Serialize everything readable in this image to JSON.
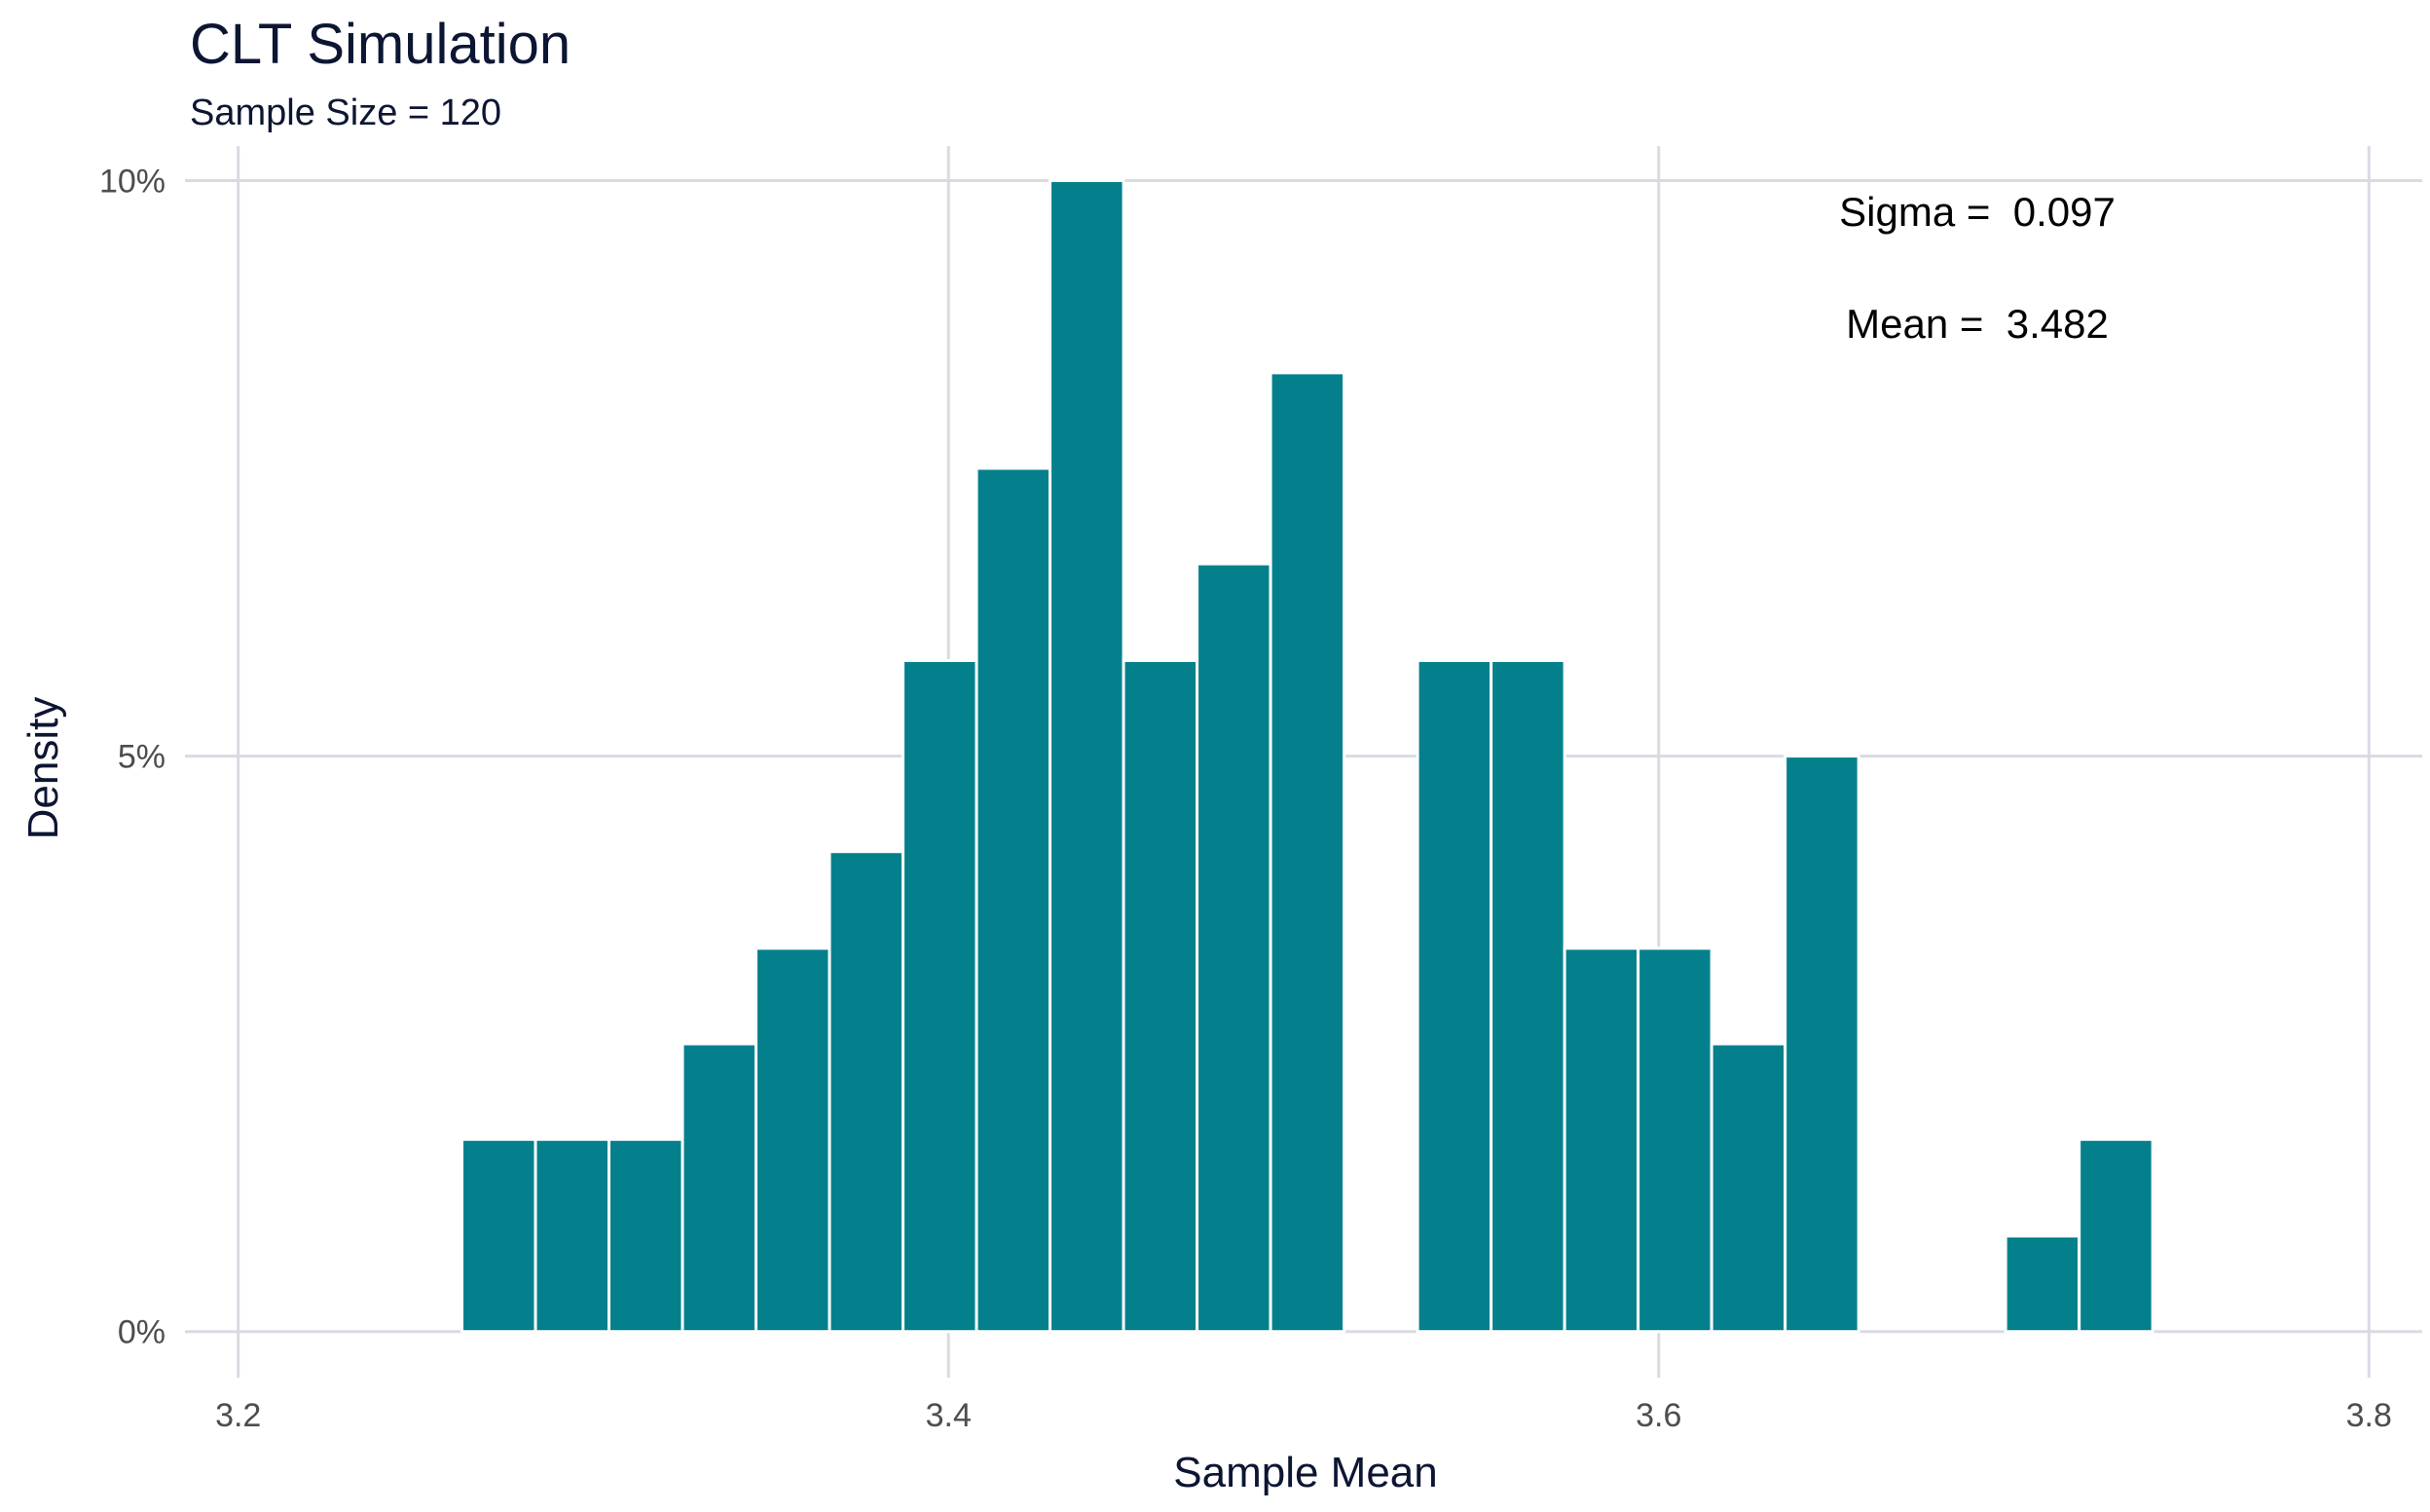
{
  "chart_data": {
    "type": "bar",
    "title": "CLT Simulation",
    "subtitle": "Sample Size = 120",
    "xlabel": "Sample Mean",
    "ylabel": "Density",
    "xlim": [
      3.185,
      3.815
    ],
    "ylim": [
      -0.004,
      0.103
    ],
    "x_ticks": [
      {
        "value": 3.2,
        "label": "3.2"
      },
      {
        "value": 3.4,
        "label": "3.4"
      },
      {
        "value": 3.6,
        "label": "3.6"
      },
      {
        "value": 3.8,
        "label": "3.8"
      }
    ],
    "y_ticks": [
      {
        "value": 0.0,
        "label": "0%"
      },
      {
        "value": 0.05,
        "label": "5%"
      },
      {
        "value": 0.1,
        "label": "10%"
      }
    ],
    "bin_width": 0.0207,
    "bins": [
      {
        "x0": 3.263,
        "x1": 3.2837,
        "density": 0.0167
      },
      {
        "x0": 3.2837,
        "x1": 3.3044,
        "density": 0.0167
      },
      {
        "x0": 3.3044,
        "x1": 3.3251,
        "density": 0.0167
      },
      {
        "x0": 3.3251,
        "x1": 3.3458,
        "density": 0.025
      },
      {
        "x0": 3.3458,
        "x1": 3.3665,
        "density": 0.0333
      },
      {
        "x0": 3.3665,
        "x1": 3.3872,
        "density": 0.0417
      },
      {
        "x0": 3.3872,
        "x1": 3.4079,
        "density": 0.0583
      },
      {
        "x0": 3.4079,
        "x1": 3.4286,
        "density": 0.075
      },
      {
        "x0": 3.4286,
        "x1": 3.4493,
        "density": 0.1
      },
      {
        "x0": 3.4493,
        "x1": 3.47,
        "density": 0.0583
      },
      {
        "x0": 3.47,
        "x1": 3.4907,
        "density": 0.0667
      },
      {
        "x0": 3.4907,
        "x1": 3.5114,
        "density": 0.0833
      },
      {
        "x0": 3.5114,
        "x1": 3.5321,
        "density": 0.0
      },
      {
        "x0": 3.5321,
        "x1": 3.5528,
        "density": 0.0583
      },
      {
        "x0": 3.5528,
        "x1": 3.5735,
        "density": 0.0583
      },
      {
        "x0": 3.5735,
        "x1": 3.5942,
        "density": 0.0333
      },
      {
        "x0": 3.5942,
        "x1": 3.6149,
        "density": 0.0333
      },
      {
        "x0": 3.6149,
        "x1": 3.6356,
        "density": 0.025
      },
      {
        "x0": 3.6356,
        "x1": 3.6563,
        "density": 0.05
      },
      {
        "x0": 3.6563,
        "x1": 3.677,
        "density": 0.0
      },
      {
        "x0": 3.677,
        "x1": 3.6977,
        "density": 0.0
      },
      {
        "x0": 3.6977,
        "x1": 3.7184,
        "density": 0.0083
      },
      {
        "x0": 3.7184,
        "x1": 3.7391,
        "density": 0.0167
      }
    ],
    "annotations": [
      {
        "label": "Sigma",
        "text": "Sigma =  0.097",
        "value": 0.097
      },
      {
        "label": "Mean",
        "text": "Mean =  3.482",
        "value": 3.482
      }
    ],
    "colors": {
      "bar_fill": "#04808d",
      "bar_outline": "#ffffff",
      "grid": "#d9dbe3"
    },
    "grid": true,
    "legend": "none"
  }
}
